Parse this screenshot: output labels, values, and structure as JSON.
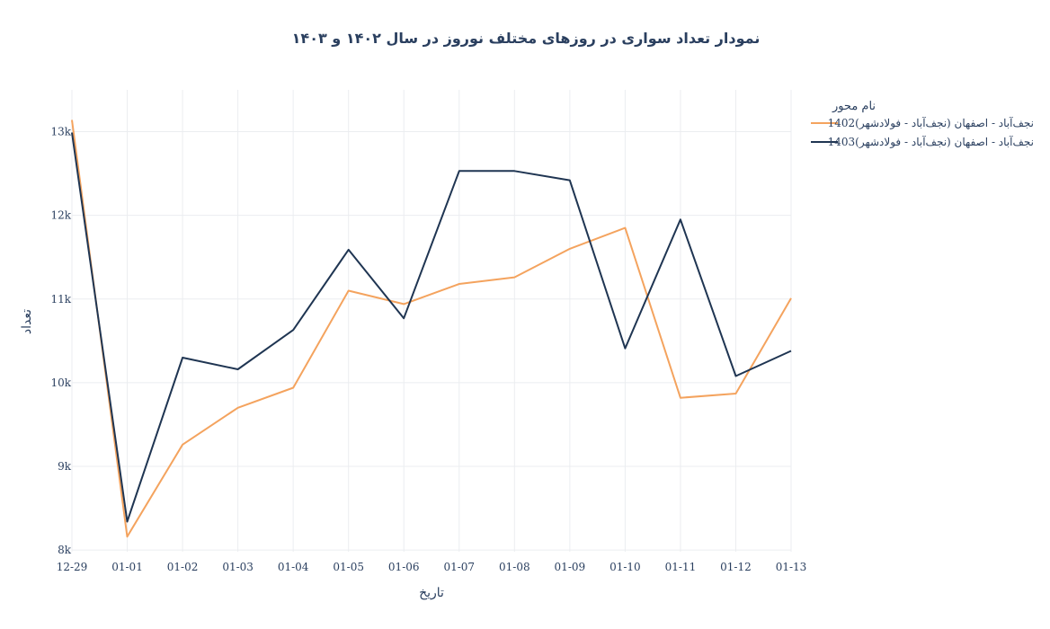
{
  "chart_data": {
    "type": "line",
    "title": "نمودار تعداد سواری در روزهای مختلف نوروز در سال ۱۴۰۲ و ۱۴۰۳",
    "xlabel": "تاریخ",
    "ylabel": "تعداد",
    "categories": [
      "12-29",
      "01-01",
      "01-02",
      "01-03",
      "01-04",
      "01-05",
      "01-06",
      "01-07",
      "01-08",
      "01-09",
      "01-10",
      "01-11",
      "01-12",
      "01-13"
    ],
    "ylim": [
      7980,
      13500
    ],
    "yticks": [
      8000,
      9000,
      10000,
      11000,
      12000,
      13000
    ],
    "ytick_labels": [
      "8k",
      "9k",
      "10k",
      "11k",
      "12k",
      "13k"
    ],
    "legend": {
      "title": "نام محور",
      "placement": "top-right"
    },
    "grid": true,
    "series": [
      {
        "name": "نجف‌آباد - اصفهان (نجف‌آباد - فولادشهر)1402",
        "color": "#f4a35e",
        "values": [
          13140,
          8160,
          9260,
          9700,
          9940,
          11100,
          10940,
          11180,
          11260,
          11600,
          11850,
          9820,
          9870,
          11010
        ]
      },
      {
        "name": "نجف‌آباد - اصفهان (نجف‌آباد - فولادشهر)1403",
        "color": "#1f3552",
        "values": [
          12990,
          8340,
          10300,
          10160,
          10630,
          11590,
          10770,
          12530,
          12530,
          12420,
          10410,
          11950,
          10080,
          10380
        ]
      }
    ]
  }
}
